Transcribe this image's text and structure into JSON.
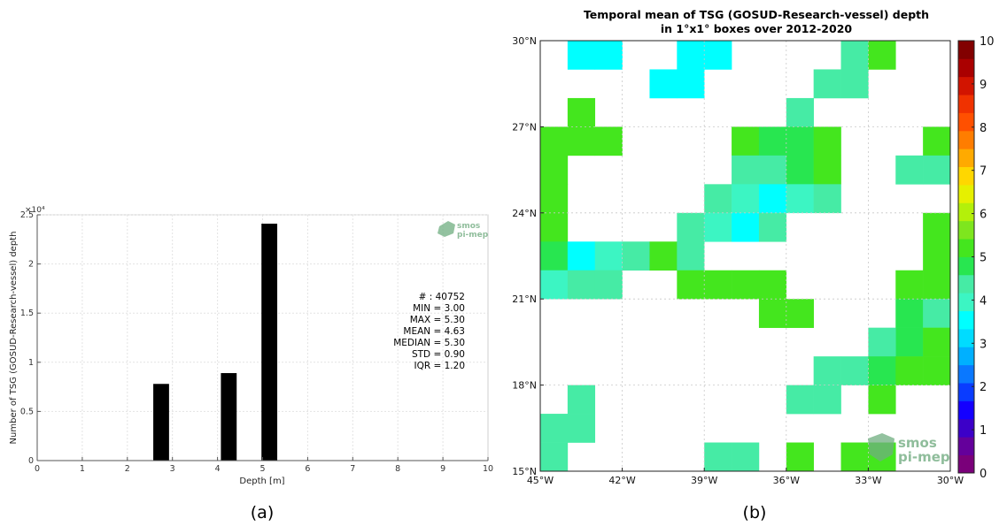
{
  "panel_labels": {
    "a": "(a)",
    "b": "(b)"
  },
  "logo": {
    "line1": "smos",
    "line2": "pi-mep",
    "color": "#5aa06b"
  },
  "stats_box": {
    "lines": [
      "# : 40752",
      "MIN = 3.00",
      "MAX = 5.30",
      "MEAN = 4.63",
      "MEDIAN = 5.30",
      "STD = 0.90",
      "IQR = 1.20"
    ]
  },
  "colorbar": {
    "ticks": [
      "0",
      "1",
      "2",
      "3",
      "4",
      "5",
      "6",
      "7",
      "8",
      "9",
      "10"
    ],
    "colors": [
      "#7a007a",
      "#64009b",
      "#3c00c8",
      "#1400ff",
      "#0a3cff",
      "#0a78ff",
      "#00b0ff",
      "#00dcff",
      "#00ffff",
      "#3cf5c3",
      "#46eba5",
      "#28e650",
      "#44e61e",
      "#7ee61e",
      "#b4f00a",
      "#e6f000",
      "#ffd700",
      "#ffaa00",
      "#ff7d00",
      "#ff5000",
      "#f03200",
      "#d21400",
      "#aa0000",
      "#820000"
    ]
  },
  "chart_data": [
    {
      "type": "bar",
      "title": "",
      "xlabel": "Depth [m]",
      "ylabel": "Number of TSG (GOSUD-Research-vessel) depth",
      "y_multiplier_label": "×10⁴",
      "xlim": [
        0,
        10
      ],
      "ylim": [
        0,
        25000
      ],
      "xticks": [
        "0",
        "1",
        "2",
        "3",
        "4",
        "5",
        "6",
        "7",
        "8",
        "9",
        "10"
      ],
      "yticks": [
        "0",
        "0.5",
        "1",
        "1.5",
        "2",
        "2.5"
      ],
      "bar_width": 0.35,
      "bar_color": "#000000",
      "bars": [
        {
          "x": 2.75,
          "value": 7800
        },
        {
          "x": 4.25,
          "value": 8900
        },
        {
          "x": 5.15,
          "value": 24100
        }
      ],
      "grid": true
    },
    {
      "type": "heatmap",
      "title_line1": "Temporal mean of TSG (GOSUD-Research-vessel) depth",
      "title_line2": "in 1°x1° boxes over 2012-2020",
      "lon_range": [
        -45,
        -30
      ],
      "lat_range": [
        15,
        30
      ],
      "xticks": [
        "45°W",
        "42°W",
        "39°W",
        "36°W",
        "33°W",
        "30°W"
      ],
      "yticks": [
        "15°N",
        "18°N",
        "21°N",
        "24°N",
        "27°N",
        "30°N"
      ],
      "vmin": 0,
      "vmax": 10,
      "colorbar_label_position": "right",
      "cells": [
        {
          "lon": -44,
          "lat": 29,
          "value": 3.4
        },
        {
          "lon": -43,
          "lat": 29,
          "value": 3.4
        },
        {
          "lon": -40,
          "lat": 29,
          "value": 3.4
        },
        {
          "lon": -39,
          "lat": 29,
          "value": 3.4
        },
        {
          "lon": -34,
          "lat": 29,
          "value": 4.4
        },
        {
          "lon": -33,
          "lat": 29,
          "value": 5.0
        },
        {
          "lon": -41,
          "lat": 28,
          "value": 3.4
        },
        {
          "lon": -40,
          "lat": 28,
          "value": 3.4
        },
        {
          "lon": -35,
          "lat": 28,
          "value": 4.4
        },
        {
          "lon": -34,
          "lat": 28,
          "value": 4.4
        },
        {
          "lon": -44,
          "lat": 27,
          "value": 5.0
        },
        {
          "lon": -36,
          "lat": 27,
          "value": 4.4
        },
        {
          "lon": -45,
          "lat": 26,
          "value": 5.0
        },
        {
          "lon": -44,
          "lat": 26,
          "value": 5.0
        },
        {
          "lon": -43,
          "lat": 26,
          "value": 5.0
        },
        {
          "lon": -38,
          "lat": 26,
          "value": 5.1
        },
        {
          "lon": -37,
          "lat": 26,
          "value": 4.8
        },
        {
          "lon": -36,
          "lat": 26,
          "value": 4.8
        },
        {
          "lon": -35,
          "lat": 26,
          "value": 5.0
        },
        {
          "lon": -31,
          "lat": 26,
          "value": 5.0
        },
        {
          "lon": -45,
          "lat": 25,
          "value": 5.0
        },
        {
          "lon": -38,
          "lat": 25,
          "value": 4.4
        },
        {
          "lon": -37,
          "lat": 25,
          "value": 4.4
        },
        {
          "lon": -36,
          "lat": 25,
          "value": 4.8
        },
        {
          "lon": -35,
          "lat": 25,
          "value": 5.1
        },
        {
          "lon": -32,
          "lat": 25,
          "value": 4.4
        },
        {
          "lon": -31,
          "lat": 25,
          "value": 4.4
        },
        {
          "lon": -45,
          "lat": 24,
          "value": 5.0
        },
        {
          "lon": -39,
          "lat": 24,
          "value": 4.4
        },
        {
          "lon": -38,
          "lat": 24,
          "value": 3.9
        },
        {
          "lon": -37,
          "lat": 24,
          "value": 3.4
        },
        {
          "lon": -36,
          "lat": 24,
          "value": 3.9
        },
        {
          "lon": -35,
          "lat": 24,
          "value": 4.4
        },
        {
          "lon": -45,
          "lat": 23,
          "value": 5.0
        },
        {
          "lon": -40,
          "lat": 23,
          "value": 4.4
        },
        {
          "lon": -39,
          "lat": 23,
          "value": 3.9
        },
        {
          "lon": -38,
          "lat": 23,
          "value": 3.4
        },
        {
          "lon": -37,
          "lat": 23,
          "value": 4.4
        },
        {
          "lon": -31,
          "lat": 23,
          "value": 5.0
        },
        {
          "lon": -45,
          "lat": 22,
          "value": 4.8
        },
        {
          "lon": -44,
          "lat": 22,
          "value": 3.4
        },
        {
          "lon": -43,
          "lat": 22,
          "value": 3.9
        },
        {
          "lon": -42,
          "lat": 22,
          "value": 4.4
        },
        {
          "lon": -41,
          "lat": 22,
          "value": 5.1
        },
        {
          "lon": -40,
          "lat": 22,
          "value": 4.4
        },
        {
          "lon": -31,
          "lat": 22,
          "value": 5.0
        },
        {
          "lon": -45,
          "lat": 21,
          "value": 3.9
        },
        {
          "lon": -44,
          "lat": 21,
          "value": 4.4
        },
        {
          "lon": -43,
          "lat": 21,
          "value": 4.4
        },
        {
          "lon": -40,
          "lat": 21,
          "value": 5.0
        },
        {
          "lon": -39,
          "lat": 21,
          "value": 5.0
        },
        {
          "lon": -38,
          "lat": 21,
          "value": 5.0
        },
        {
          "lon": -37,
          "lat": 21,
          "value": 5.0
        },
        {
          "lon": -32,
          "lat": 21,
          "value": 5.0
        },
        {
          "lon": -31,
          "lat": 21,
          "value": 5.0
        },
        {
          "lon": -37,
          "lat": 20,
          "value": 5.0
        },
        {
          "lon": -36,
          "lat": 20,
          "value": 5.0
        },
        {
          "lon": -32,
          "lat": 20,
          "value": 4.8
        },
        {
          "lon": -31,
          "lat": 20,
          "value": 4.4
        },
        {
          "lon": -32,
          "lat": 19,
          "value": 4.8
        },
        {
          "lon": -31,
          "lat": 19,
          "value": 5.0
        },
        {
          "lon": -33,
          "lat": 19,
          "value": 4.4
        },
        {
          "lon": -35,
          "lat": 18,
          "value": 4.4
        },
        {
          "lon": -34,
          "lat": 18,
          "value": 4.4
        },
        {
          "lon": -33,
          "lat": 18,
          "value": 4.8
        },
        {
          "lon": -32,
          "lat": 18,
          "value": 5.0
        },
        {
          "lon": -31,
          "lat": 18,
          "value": 5.0
        },
        {
          "lon": -44,
          "lat": 17,
          "value": 4.4
        },
        {
          "lon": -36,
          "lat": 17,
          "value": 4.4
        },
        {
          "lon": -35,
          "lat": 17,
          "value": 4.4
        },
        {
          "lon": -33,
          "lat": 17,
          "value": 5.0
        },
        {
          "lon": -45,
          "lat": 16,
          "value": 4.4
        },
        {
          "lon": -44,
          "lat": 16,
          "value": 4.4
        },
        {
          "lon": -45,
          "lat": 15,
          "value": 4.4
        },
        {
          "lon": -39,
          "lat": 15,
          "value": 4.4
        },
        {
          "lon": -38,
          "lat": 15,
          "value": 4.4
        },
        {
          "lon": -36,
          "lat": 15,
          "value": 5.0
        },
        {
          "lon": -34,
          "lat": 15,
          "value": 5.0
        },
        {
          "lon": -33,
          "lat": 15,
          "value": 5.0
        }
      ]
    }
  ]
}
